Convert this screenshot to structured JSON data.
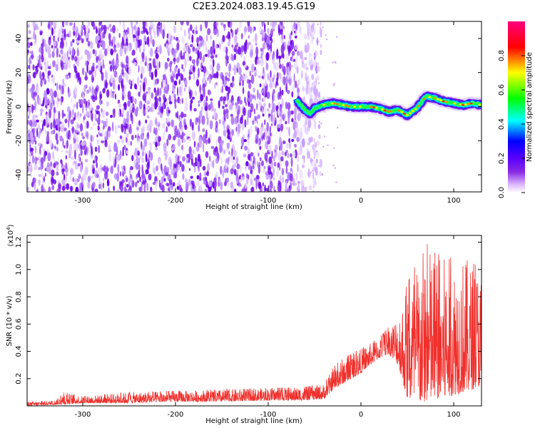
{
  "chart_data": [
    {
      "type": "heatmap",
      "title": "C2E3.2024.083.19.45.G19",
      "xlabel": "Height of straight line (km)",
      "ylabel": "Frequency (Hz)",
      "xlim": [
        -360,
        130
      ],
      "ylim": [
        -50,
        50
      ],
      "xticks": [
        -300,
        -200,
        -100,
        0,
        100
      ],
      "yticks": [
        -40,
        -20,
        0,
        20,
        40
      ],
      "grid": false,
      "colorbar": {
        "label": "Normalized spectral amplitude",
        "range": [
          0,
          1
        ],
        "ticks": [
          "0.0",
          "0.2",
          "0.4",
          "0.6",
          "0.8"
        ],
        "colormap": [
          "#ffffff",
          "#d9b3ff",
          "#8a2be2",
          "#5a00ff",
          "#0000ff",
          "#00ffff",
          "#00ff00",
          "#ffff00",
          "#ff0000",
          "#ff007f"
        ]
      },
      "noise_region": {
        "x_range": [
          -360,
          -55
        ],
        "color": "#7b1fe0"
      },
      "signal_ridge": {
        "x": [
          -70,
          -60,
          -55,
          -50,
          -40,
          -30,
          -20,
          -10,
          0,
          10,
          20,
          30,
          40,
          50,
          60,
          70,
          80,
          90,
          100,
          110,
          120,
          130
        ],
        "frequency": [
          4,
          -2,
          -4,
          -1,
          1,
          2,
          1,
          0,
          0,
          0,
          -1,
          -3,
          -2,
          -5,
          -1,
          6,
          5,
          3,
          2,
          1,
          2,
          1
        ]
      }
    },
    {
      "type": "line",
      "title": "",
      "xlabel": "Height of straight line (km)",
      "ylabel": "SNR (10 * v/v)",
      "y_multiplier_label": "(x10",
      "y_multiplier_exp": "4",
      "xlim": [
        -360,
        130
      ],
      "ylim": [
        0,
        1.25
      ],
      "xticks": [
        -300,
        -200,
        -100,
        0,
        100
      ],
      "yticks": [
        "0.2",
        "0.4",
        "0.6",
        "0.8",
        "1.0",
        "1.2"
      ],
      "grid": false,
      "series": [
        {
          "color": "#f0302c",
          "envelope": {
            "x": [
              -360,
              -330,
              -320,
              -300,
              -250,
              -200,
              -150,
              -100,
              -60,
              -40,
              -30,
              -20,
              -10,
              0,
              10,
              20,
              30,
              40,
              50,
              60,
              70,
              80,
              90,
              100,
              110,
              120,
              130
            ],
            "low": [
              0.0,
              0.01,
              0.01,
              0.02,
              0.02,
              0.03,
              0.03,
              0.04,
              0.04,
              0.05,
              0.12,
              0.16,
              0.2,
              0.24,
              0.3,
              0.35,
              0.38,
              0.3,
              0.05,
              0.02,
              0.03,
              0.05,
              0.05,
              0.08,
              0.1,
              0.12,
              0.15
            ],
            "high": [
              0.03,
              0.04,
              0.1,
              0.07,
              0.1,
              0.11,
              0.12,
              0.13,
              0.14,
              0.16,
              0.28,
              0.35,
              0.38,
              0.42,
              0.46,
              0.5,
              0.58,
              0.68,
              0.9,
              1.05,
              1.2,
              1.12,
              1.1,
              1.08,
              1.1,
              1.05,
              1.0
            ]
          }
        }
      ]
    }
  ]
}
